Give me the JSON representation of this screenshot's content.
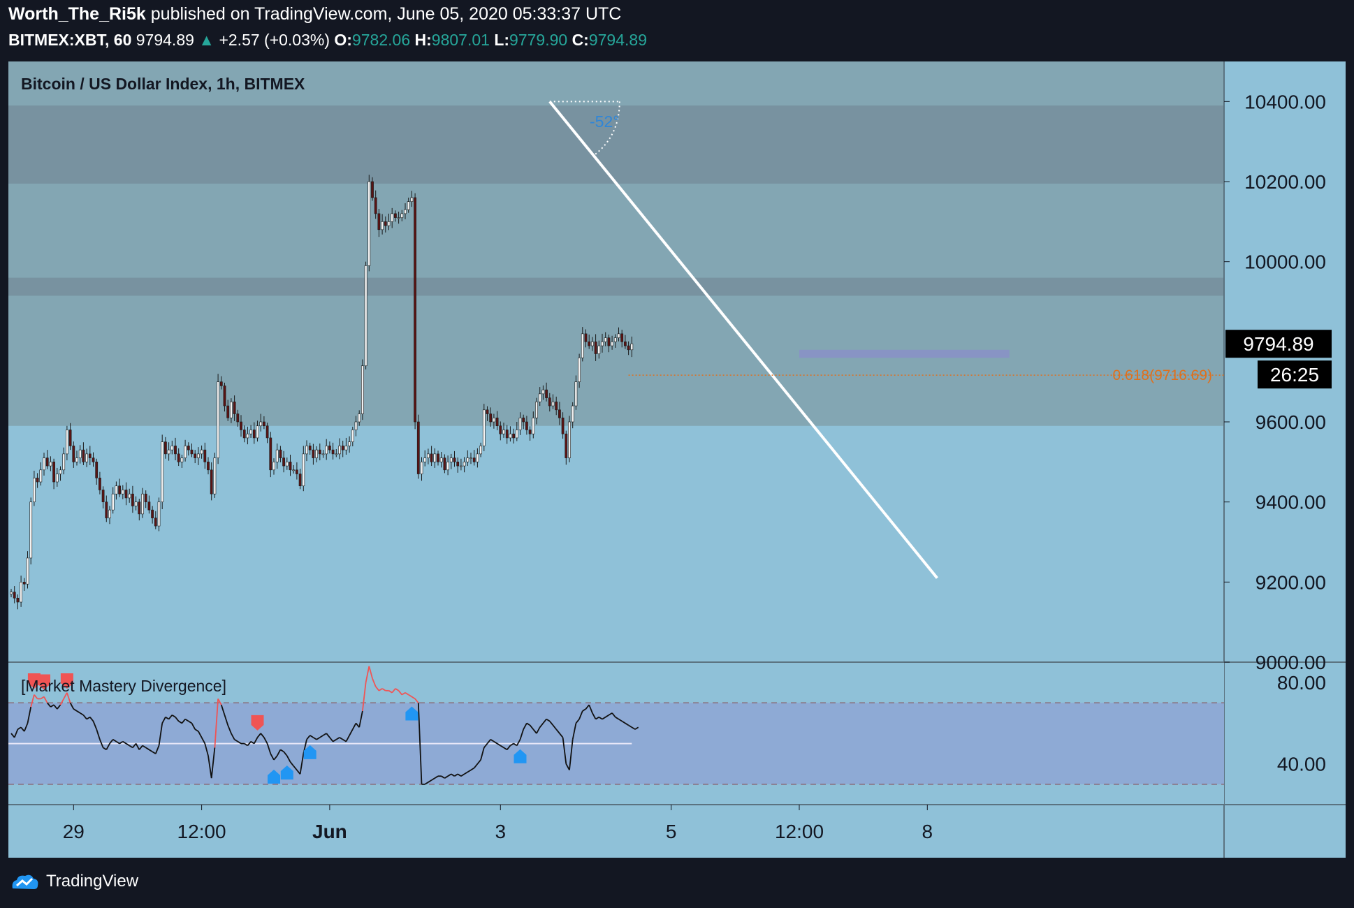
{
  "header": {
    "author": "Worth_The_Ri5k",
    "published": "published on TradingView.com, June 05, 2020 05:33:37 UTC",
    "symbol": "BITMEX:XBT, 60",
    "last": "9794.89",
    "arrow": "▲",
    "change": "+2.57 (+0.03%)",
    "o_label": "O:",
    "o": "9782.06",
    "h_label": "H:",
    "h": "9807.01",
    "l_label": "L:",
    "l": "9779.90",
    "c_label": "C:",
    "c": "9794.89"
  },
  "colors": {
    "background": "#131722",
    "upper_panel": "#83a6b3",
    "lower_panel": "#8fc1d8",
    "zone": "#7892a0",
    "osc_band": "#8eaad5",
    "candle_up": "#f2f2f2",
    "candle_down": "#5a1414",
    "fib": "#e0701c",
    "signal_bear": "#f05454",
    "signal_bull": "#2196f3"
  },
  "chart_data": {
    "type": "candlestick",
    "title": "Bitcoin / US Dollar Index, 1h, BITMEX",
    "y_ticks": [
      "10400.00",
      "10200.00",
      "10000.00",
      "9600.00",
      "9400.00",
      "9200.00",
      "9000.00"
    ],
    "ylim": [
      9000,
      10500
    ],
    "x_ticks": [
      "29",
      "12:00",
      "Jun",
      "3",
      "5",
      "12:00",
      "8"
    ],
    "last_price_label": "9794.89",
    "countdown_label": "26:25",
    "fib_label": "0.618(9716.69)",
    "fib_value": 9716.69,
    "angle_label": "-52°",
    "resistance_zones": [
      [
        10195,
        10390
      ],
      [
        9915,
        9960
      ]
    ],
    "upper_region_bottom": 9590,
    "trendline": {
      "from": {
        "x": 164,
        "y": 10400
      },
      "to": {
        "x": 282,
        "y": 9210
      }
    },
    "support_box": {
      "x_from": 240,
      "x_to": 304,
      "y_from": 9760,
      "y_to": 9780
    },
    "closes": [
      9175,
      9160,
      9150,
      9200,
      9195,
      9260,
      9400,
      9460,
      9450,
      9480,
      9510,
      9490,
      9500,
      9450,
      9470,
      9480,
      9520,
      9580,
      9540,
      9500,
      9510,
      9530,
      9500,
      9520,
      9510,
      9500,
      9460,
      9430,
      9400,
      9360,
      9380,
      9420,
      9440,
      9420,
      9430,
      9410,
      9420,
      9390,
      9400,
      9370,
      9420,
      9400,
      9380,
      9360,
      9340,
      9400,
      9550,
      9520,
      9530,
      9540,
      9520,
      9500,
      9510,
      9540,
      9530,
      9520,
      9510,
      9520,
      9530,
      9500,
      9480,
      9420,
      9510,
      9700,
      9690,
      9640,
      9610,
      9650,
      9620,
      9600,
      9580,
      9560,
      9570,
      9580,
      9560,
      9590,
      9600,
      9590,
      9560,
      9480,
      9500,
      9530,
      9510,
      9490,
      9500,
      9480,
      9480,
      9470,
      9440,
      9520,
      9540,
      9530,
      9510,
      9530,
      9520,
      9520,
      9540,
      9530,
      9520,
      9520,
      9540,
      9530,
      9540,
      9550,
      9580,
      9600,
      9620,
      9740,
      9990,
      10200,
      10160,
      10120,
      10080,
      10100,
      10090,
      10100,
      10120,
      10110,
      10110,
      10120,
      10130,
      10150,
      10160,
      9600,
      9470,
      9500,
      9510,
      9520,
      9500,
      9520,
      9500,
      9510,
      9480,
      9500,
      9510,
      9500,
      9490,
      9490,
      9500,
      9510,
      9510,
      9500,
      9520,
      9540,
      9630,
      9620,
      9600,
      9610,
      9590,
      9570,
      9580,
      9560,
      9570,
      9560,
      9580,
      9610,
      9600,
      9580,
      9570,
      9610,
      9650,
      9670,
      9680,
      9660,
      9640,
      9650,
      9630,
      9610,
      9570,
      9510,
      9600,
      9640,
      9700,
      9760,
      9820,
      9800,
      9790,
      9800,
      9770,
      9790,
      9800,
      9810,
      9790,
      9800,
      9810,
      9820,
      9800,
      9790,
      9780,
      9795
    ],
    "oscillator": {
      "title": "[Market Mastery Divergence]",
      "y_ticks": [
        "80.00",
        "40.00"
      ],
      "ylim": [
        20,
        90
      ],
      "upper_level": 70,
      "lower_level": 30,
      "mid_level": 50,
      "values": [
        55,
        53,
        57,
        58,
        56,
        60,
        68,
        74,
        72,
        72,
        73,
        70,
        68,
        69,
        67,
        69,
        72,
        75,
        70,
        67,
        66,
        65,
        64,
        62,
        63,
        61,
        57,
        52,
        48,
        47,
        50,
        52,
        51,
        50,
        51,
        50,
        49,
        48,
        50,
        47,
        49,
        48,
        47,
        46,
        45,
        49,
        60,
        63,
        62,
        64,
        63,
        61,
        60,
        62,
        61,
        60,
        57,
        56,
        53,
        50,
        44,
        33,
        48,
        72,
        69,
        64,
        59,
        55,
        52,
        51,
        50,
        50,
        49,
        51,
        50,
        53,
        55,
        53,
        50,
        45,
        42,
        44,
        47,
        46,
        44,
        41,
        39,
        37,
        35,
        45,
        52,
        54,
        53,
        52,
        53,
        54,
        55,
        53,
        51,
        52,
        53,
        52,
        51,
        54,
        57,
        60,
        58,
        66,
        80,
        88,
        82,
        78,
        76,
        77,
        76,
        76,
        75,
        77,
        76,
        74,
        75,
        74,
        73,
        72,
        70,
        30,
        30,
        31,
        32,
        33,
        34,
        34,
        33,
        34,
        35,
        34,
        35,
        34,
        35,
        36,
        37,
        38,
        40,
        42,
        48,
        50,
        52,
        51,
        50,
        49,
        48,
        47,
        49,
        50,
        49,
        52,
        57,
        60,
        59,
        57,
        55,
        58,
        60,
        62,
        61,
        59,
        57,
        55,
        53,
        40,
        37,
        52,
        60,
        62,
        66,
        67,
        69,
        65,
        62,
        63,
        62,
        63,
        64,
        65,
        63,
        62,
        61,
        60,
        59,
        58,
        57,
        58
      ],
      "bear_signals": [
        7,
        10,
        17,
        75
      ],
      "bull_signals": [
        80,
        84,
        91,
        122,
        155
      ]
    }
  },
  "footer": {
    "brand": "TradingView",
    "logo_icon": "tradingview-cloud-icon"
  }
}
